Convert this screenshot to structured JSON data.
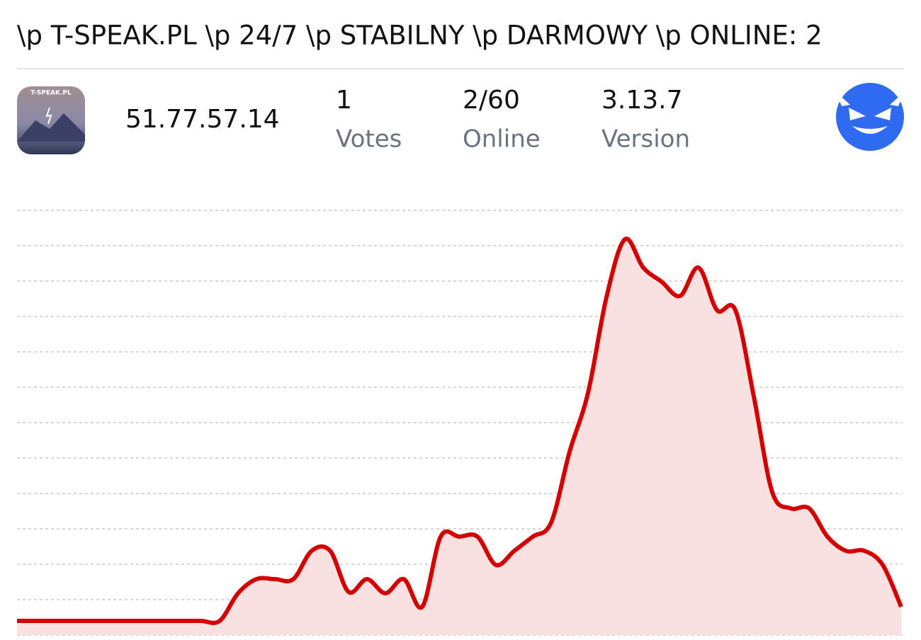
{
  "header": {
    "title": "\\p T-SPEAK.PL \\p 24/7 \\p STABILNY \\p DARMOWY \\p ONLINE: 2"
  },
  "server": {
    "icon_label": "T-SPEAK.PL",
    "address": "51.77.57.14",
    "stats": [
      {
        "value": "1",
        "label": "Votes"
      },
      {
        "value": "2/60",
        "label": "Online"
      },
      {
        "value": "3.13.7",
        "label": "Version"
      }
    ]
  },
  "chart_data": {
    "type": "line",
    "values": [
      0.4,
      0.4,
      0.4,
      0.4,
      0.4,
      0.4,
      0.4,
      0.4,
      0.4,
      0.4,
      0.4,
      0.4,
      1.18,
      1.58,
      1.58,
      1.58,
      2.38,
      2.38,
      1.22,
      1.58,
      1.18,
      1.58,
      0.8,
      2.78,
      2.78,
      2.78,
      1.98,
      2.38,
      2.78,
      3.18,
      5.18,
      6.84,
      9.54,
      11.18,
      10.38,
      9.98,
      9.58,
      10.38,
      9.18,
      9.18,
      6.74,
      4.04,
      3.58,
      3.58,
      2.78,
      2.38,
      2.38,
      1.98,
      0.8
    ],
    "color": "#d40000",
    "fill": "#f9e1e1",
    "ylim": [
      0,
      12
    ],
    "yticks": [
      0,
      1,
      2,
      3,
      4,
      5,
      6,
      7,
      8,
      9,
      10,
      11,
      12
    ],
    "grid": true
  }
}
